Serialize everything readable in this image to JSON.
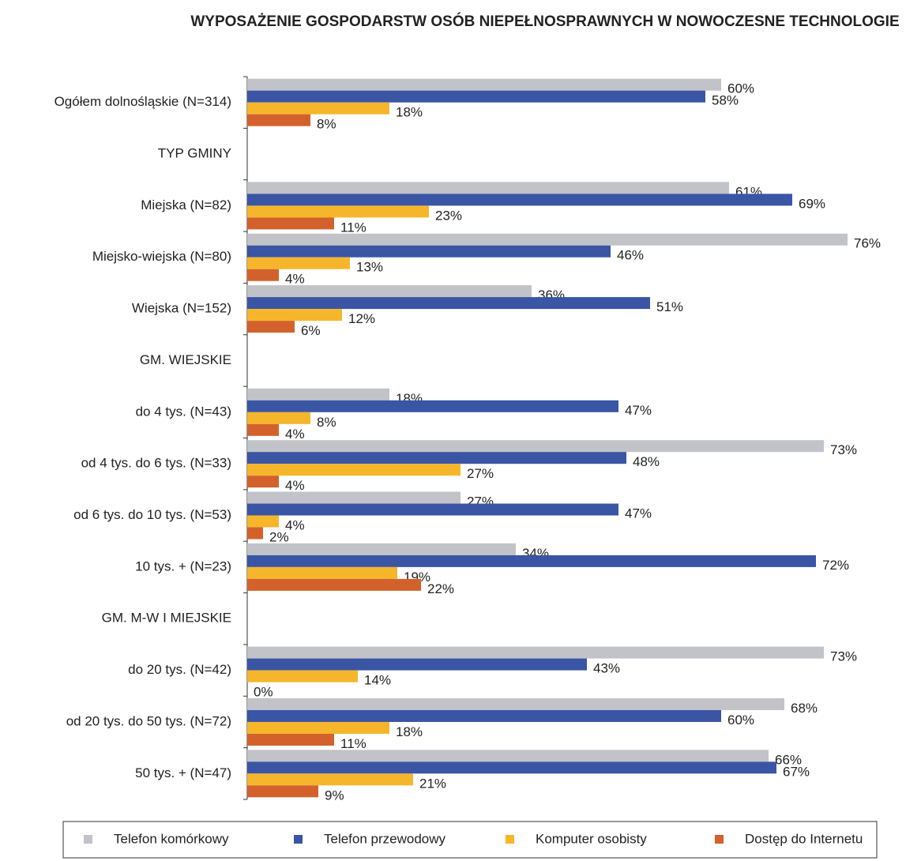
{
  "chart_data": {
    "type": "bar",
    "orientation": "horizontal",
    "title": "WYPOSAŻENIE GOSPODARSTW OSÓB NIEPEŁNOSPRAWNYCH W NOWOCZESNE TECHNOLOGIE",
    "categories": [
      "Ogółem dolnośląskie (N=314)",
      "TYP GMINY",
      "Miejska (N=82)",
      "Miejsko-wiejska (N=80)",
      "Wiejska (N=152)",
      "GM. WIEJSKIE",
      "do 4 tys. (N=43)",
      "od 4 tys. do 6 tys. (N=33)",
      "od 6 tys. do 10 tys. (N=53)",
      "10 tys. + (N=23)",
      "GM. M-W I MIEJSKIE",
      "do 20 tys. (N=42)",
      "od 20 tys. do 50 tys. (N=72)",
      "50 tys. + (N=47)"
    ],
    "series": [
      {
        "name": "Telefon komórkowy",
        "color": "#c1c3c9",
        "values": [
          60,
          null,
          61,
          76,
          36,
          null,
          18,
          73,
          27,
          34,
          null,
          73,
          68,
          66
        ],
        "value_labels": [
          "60%",
          null,
          "61%",
          "76%",
          "36%",
          null,
          "18%",
          "73%",
          "27%",
          "34%",
          null,
          "73%",
          "68%",
          "66%"
        ]
      },
      {
        "name": "Telefon przewodowy",
        "color": "#3a55a4",
        "values": [
          58,
          null,
          69,
          46,
          51,
          null,
          47,
          48,
          47,
          72,
          null,
          43,
          60,
          67
        ],
        "value_labels": [
          "58%",
          null,
          "69%",
          "46%",
          "51%",
          null,
          "47%",
          "48%",
          "47%",
          "72%",
          null,
          "43%",
          "60%",
          "67%"
        ]
      },
      {
        "name": "Komputer osobisty",
        "color": "#f6b62b",
        "values": [
          18,
          null,
          23,
          13,
          12,
          null,
          8,
          27,
          4,
          19,
          null,
          14,
          18,
          21
        ],
        "value_labels": [
          "18%",
          null,
          "23%",
          "13%",
          "12%",
          null,
          "8%",
          "27%",
          "4%",
          "19%",
          null,
          "14%",
          "18%",
          "21%"
        ]
      },
      {
        "name": "Dostęp do Internetu",
        "color": "#d3612c",
        "values": [
          8,
          null,
          11,
          4,
          6,
          null,
          4,
          4,
          2,
          22,
          null,
          0,
          11,
          9
        ],
        "value_labels": [
          "8%",
          null,
          "11%",
          "4%",
          "6%",
          null,
          "4%",
          "4%",
          "2%",
          "22%",
          null,
          "0%",
          "11%",
          "9%"
        ]
      }
    ],
    "xlim": [
      0,
      85
    ],
    "legend": "bottom"
  }
}
